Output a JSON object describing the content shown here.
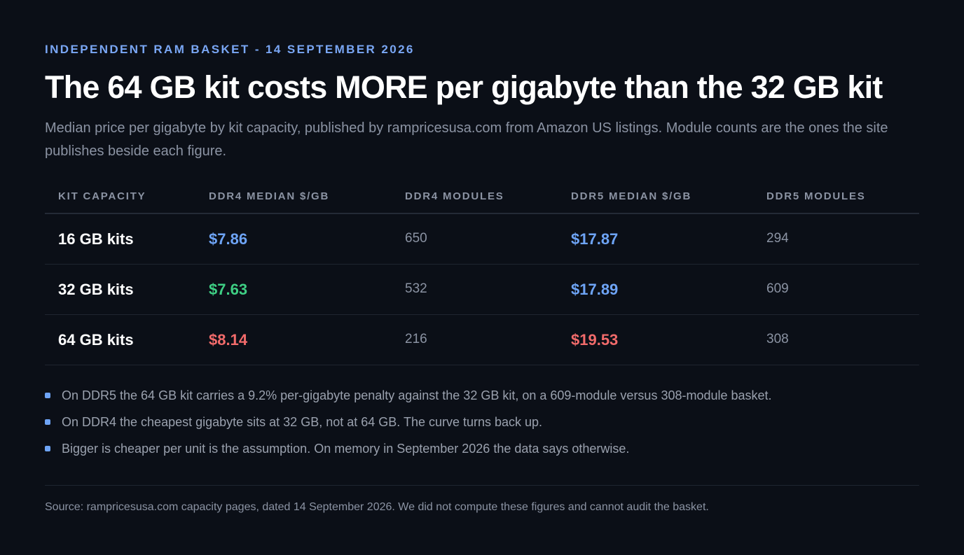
{
  "header": {
    "eyebrow": "INDEPENDENT RAM BASKET - 14 SEPTEMBER 2026",
    "title": "The 64 GB kit costs MORE per gigabyte than the 32 GB kit",
    "subtitle": "Median price per gigabyte by kit capacity, published by rampricesusa.com from Amazon US listings. Module counts are the ones the site publishes beside each figure."
  },
  "table": {
    "columns": [
      "KIT CAPACITY",
      "DDR4 MEDIAN $/GB",
      "DDR4 MODULES",
      "DDR5 MEDIAN $/GB",
      "DDR5 MODULES"
    ],
    "rows": [
      {
        "capacity": "16 GB kits",
        "ddr4_price": "$7.86",
        "ddr4_modules": "650",
        "ddr5_price": "$17.87",
        "ddr5_modules": "294"
      },
      {
        "capacity": "32 GB kits",
        "ddr4_price": "$7.63",
        "ddr4_modules": "532",
        "ddr5_price": "$17.89",
        "ddr5_modules": "609"
      },
      {
        "capacity": "64 GB kits",
        "ddr4_price": "$8.14",
        "ddr4_modules": "216",
        "ddr5_price": "$19.53",
        "ddr5_modules": "308"
      }
    ]
  },
  "colors": {
    "background": "#0b0f17",
    "accent_blue": "#6ea4f6",
    "lowest_green": "#3ecf84",
    "highest_red": "#f26b6b"
  },
  "notes": [
    "On DDR5 the 64 GB kit carries a 9.2% per-gigabyte penalty against the 32 GB kit, on a 609-module versus 308-module basket.",
    "On DDR4 the cheapest gigabyte sits at 32 GB, not at 64 GB. The curve turns back up.",
    "Bigger is cheaper per unit is the assumption. On memory in September 2026 the data says otherwise."
  ],
  "footer": {
    "source": "Source: rampricesusa.com capacity pages, dated 14 September 2026. We did not compute these figures and cannot audit the basket."
  }
}
